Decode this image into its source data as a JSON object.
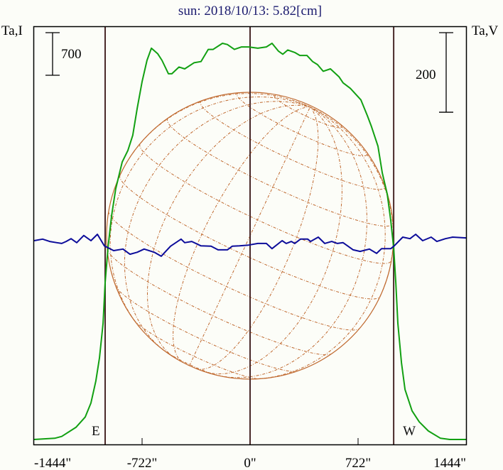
{
  "colors": {
    "intensity": "#12a012",
    "polarization": "#0c0c9a",
    "limb_lines": "#4a2a2a",
    "globe": "#c06a30",
    "title": "#1a1a6e"
  },
  "chart_data": {
    "type": "line",
    "title": "sun: 2018/10/13: 5.82[cm]",
    "left_axis_label": "Ta,I",
    "right_axis_label": "Ta,V",
    "x_unit": "arcsec",
    "xlim": [
      -1444,
      1444
    ],
    "x_ticks": [
      {
        "value": -1444,
        "label": "-1444\""
      },
      {
        "value": -722,
        "label": "-722\""
      },
      {
        "value": 0,
        "label": "0\""
      },
      {
        "value": 722,
        "label": "722\""
      },
      {
        "value": 1444,
        "label": "1444\""
      }
    ],
    "limb_markers": [
      {
        "value": -969,
        "label": "E"
      },
      {
        "value": 0,
        "label": ""
      },
      {
        "value": 960,
        "label": "W"
      }
    ],
    "scale_bars": [
      {
        "axis": "I",
        "value": 700,
        "label": "700"
      },
      {
        "axis": "V",
        "value": 200,
        "label": "200"
      }
    ],
    "ylim_I": [
      -93,
      6790
    ],
    "ylim_V": [
      -514,
      539
    ],
    "series": [
      {
        "name": "I",
        "axis": "I",
        "x": [
          -1444,
          -1306,
          -1259,
          -1164,
          -1102,
          -1064,
          -1031,
          -1007,
          -983,
          -969,
          -950,
          -926,
          -898,
          -855,
          -817,
          -784,
          -755,
          -722,
          -689,
          -660,
          -618,
          -589,
          -546,
          -523,
          -475,
          -437,
          -375,
          -328,
          -280,
          -247,
          -185,
          -152,
          -105,
          -57,
          -10,
          52,
          109,
          147,
          190,
          219,
          252,
          299,
          333,
          380,
          418,
          451,
          489,
          537,
          594,
          622,
          670,
          741,
          784,
          812,
          855,
          884,
          917,
          941,
          960,
          974,
          988,
          1012,
          1036,
          1083,
          1131,
          1192,
          1273,
          1335,
          1444
        ],
        "y": [
          0,
          20,
          50,
          200,
          370,
          600,
          960,
          1340,
          1910,
          2580,
          3150,
          3680,
          4120,
          4560,
          4750,
          5000,
          5440,
          5880,
          6230,
          6430,
          6340,
          6230,
          6010,
          6010,
          6120,
          6090,
          6190,
          6210,
          6410,
          6410,
          6510,
          6490,
          6410,
          6450,
          6450,
          6430,
          6450,
          6510,
          6380,
          6330,
          6400,
          6360,
          6310,
          6310,
          6210,
          6160,
          6050,
          6090,
          5960,
          5860,
          5770,
          5580,
          5320,
          5140,
          4820,
          4380,
          4030,
          3590,
          3150,
          2580,
          1910,
          1260,
          820,
          470,
          290,
          140,
          20,
          0,
          0
        ]
      },
      {
        "name": "V",
        "axis": "V",
        "x": [
          -1444,
          -1387,
          -1340,
          -1292,
          -1259,
          -1230,
          -1197,
          -1159,
          -1112,
          -1064,
          -1021,
          -974,
          -912,
          -850,
          -803,
          -755,
          -708,
          -641,
          -594,
          -532,
          -461,
          -437,
          -390,
          -328,
          -261,
          -214,
          -152,
          -119,
          -71,
          -10,
          52,
          109,
          147,
          214,
          242,
          276,
          299,
          337,
          385,
          404,
          456,
          499,
          546,
          584,
          622,
          689,
          736,
          798,
          846,
          879,
          941,
          964,
          1021,
          1069,
          1107,
          1154,
          1211,
          1249,
          1306,
          1354,
          1444
        ],
        "y": [
          0,
          4,
          -2,
          -5,
          -7,
          -2,
          5,
          -5,
          13,
          0,
          16,
          -13,
          -25,
          -21,
          -34,
          -29,
          -21,
          -29,
          -39,
          -14,
          4,
          -5,
          -2,
          -13,
          -14,
          -23,
          -23,
          -14,
          -13,
          -11,
          -7,
          -7,
          -20,
          0,
          -7,
          -2,
          -7,
          4,
          4,
          -2,
          9,
          -7,
          -2,
          -7,
          -5,
          -23,
          -27,
          -21,
          -32,
          -20,
          -20,
          -13,
          9,
          5,
          16,
          0,
          9,
          -2,
          5,
          9,
          7
        ]
      }
    ],
    "grid": false
  }
}
